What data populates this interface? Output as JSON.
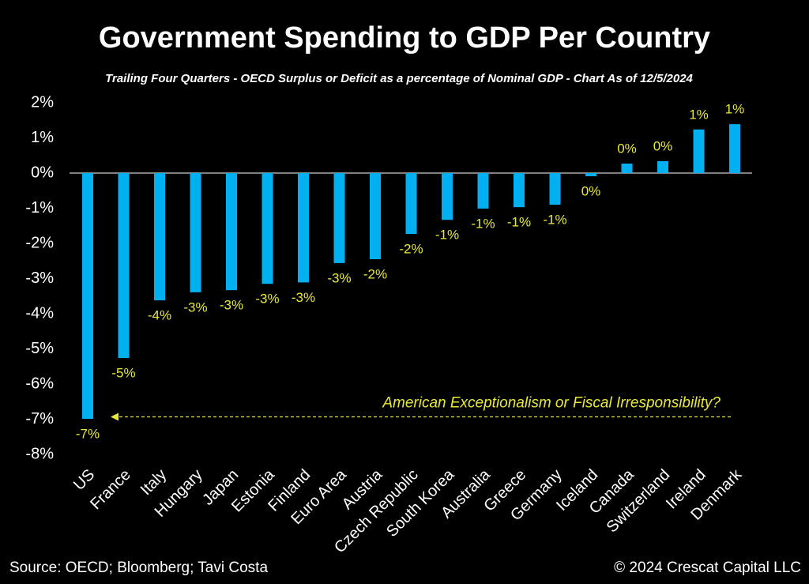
{
  "chart_data": {
    "type": "bar",
    "title": "Government Spending to GDP Per Country",
    "subtitle": "Trailing Four Quarters - OECD  Surplus or Deficit as a percentage of Nominal GDP - Chart As of 12/5/2024",
    "source": "Source: OECD; Bloomberg; Tavi Costa",
    "credit": "© 2024 Crescat Capital LLC",
    "annotation": "American Exceptionalism or Fiscal Irresponsibility?",
    "categories": [
      "US",
      "France",
      "Italy",
      "Hungary",
      "Japan",
      "Estonia",
      "Finland",
      "Euro Area",
      "Austria",
      "Czech Republic",
      "South Korea",
      "Australia",
      "Greece",
      "Germany",
      "Iceland",
      "Canada",
      "Switzerland",
      "Ireland",
      "Denmark"
    ],
    "values": [
      -6.99,
      -5.26,
      -3.62,
      -3.39,
      -3.33,
      -3.15,
      -3.11,
      -2.56,
      -2.45,
      -1.73,
      -1.33,
      -1.01,
      -0.97,
      -0.9,
      -0.09,
      0.27,
      0.34,
      1.24,
      1.39
    ],
    "value_labels": [
      "-7%",
      "-5%",
      "-4%",
      "-3%",
      "-3%",
      "-3%",
      "-3%",
      "-3%",
      "-2%",
      "-2%",
      "-1%",
      "-1%",
      "-1%",
      "-1%",
      "0%",
      "0%",
      "0%",
      "1%",
      "1%"
    ],
    "color": "#00b0f0",
    "label_color": "#e8e83a",
    "ylim": [
      -8,
      2
    ],
    "yticks": [
      {
        "value": 2,
        "label": "2%"
      },
      {
        "value": 1,
        "label": "1%"
      },
      {
        "value": 0,
        "label": "0%"
      },
      {
        "value": -1,
        "label": "-1%"
      },
      {
        "value": -2,
        "label": "-2%"
      },
      {
        "value": -3,
        "label": "-3%"
      },
      {
        "value": -4,
        "label": "-4%"
      },
      {
        "value": -5,
        "label": "-5%"
      },
      {
        "value": -6,
        "label": "-6%"
      },
      {
        "value": -7,
        "label": "-7%"
      },
      {
        "value": -8,
        "label": "-8%"
      }
    ],
    "grid": false
  }
}
